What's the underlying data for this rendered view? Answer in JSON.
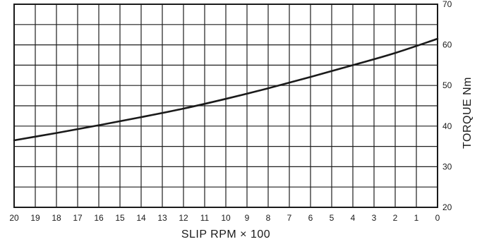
{
  "chart_data": {
    "type": "line",
    "title": "",
    "xlabel": "SLIP RPM  × 100",
    "ylabel": "TORQUE Nm",
    "x_reversed": true,
    "xlim": [
      20,
      0
    ],
    "ylim": [
      20,
      70
    ],
    "x_ticks": [
      "20",
      "19",
      "18",
      "17",
      "16",
      "15",
      "14",
      "13",
      "12",
      "11",
      "10",
      "9",
      "8",
      "7",
      "6",
      "5",
      "4",
      "3",
      "2",
      "1",
      "0"
    ],
    "y_ticks": [
      "20",
      "30",
      "40",
      "50",
      "60",
      "70"
    ],
    "y_tick_values": [
      20,
      30,
      40,
      50,
      60,
      70
    ],
    "y_axis_side": "right",
    "grid": true,
    "series": [
      {
        "x": [
          20,
          18,
          16,
          14,
          12,
          10,
          8,
          6,
          4,
          2,
          0
        ],
        "y": [
          36.5,
          38.3,
          40.2,
          42.2,
          44.3,
          46.7,
          49.3,
          52.1,
          55.0,
          58.0,
          61.5
        ]
      }
    ]
  }
}
